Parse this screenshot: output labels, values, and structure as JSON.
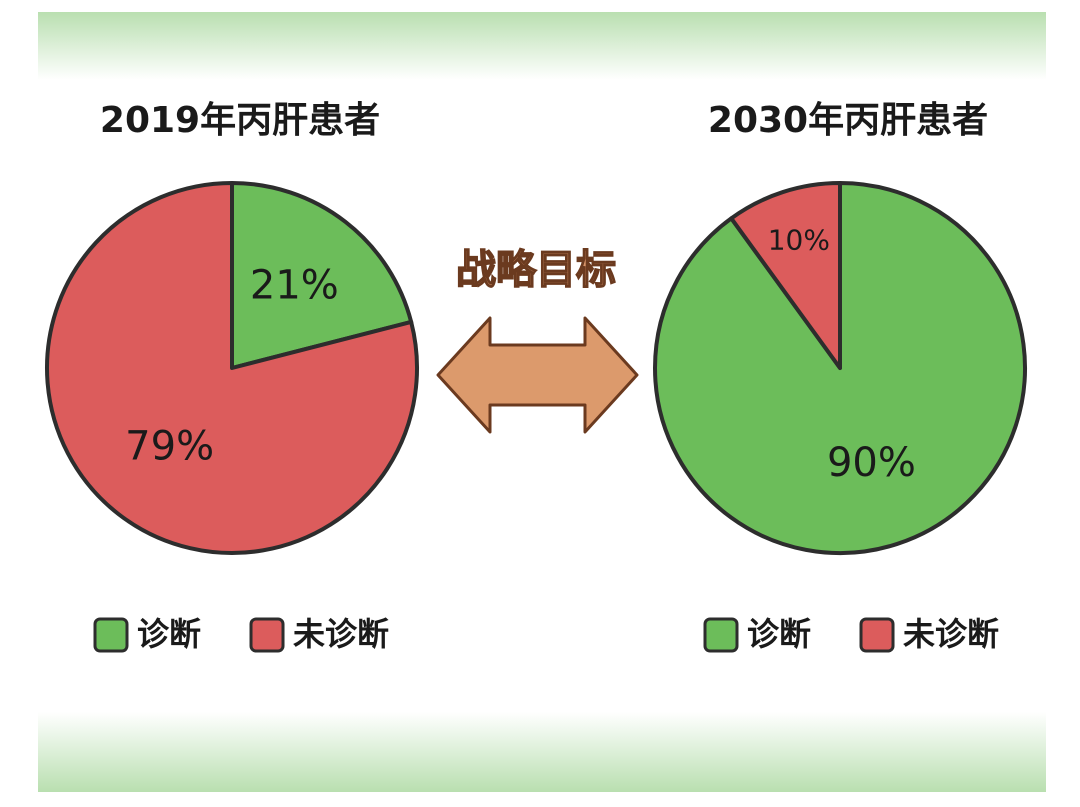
{
  "chart_data": [
    {
      "type": "pie",
      "title": "2019年丙肝患者",
      "categories": [
        "诊断",
        "未诊断"
      ],
      "values": [
        21,
        79
      ],
      "value_labels": [
        "21%",
        "79%"
      ],
      "colors": [
        "#6cbd5a",
        "#dc5c5c"
      ]
    },
    {
      "type": "pie",
      "title": "2030年丙肝患者",
      "categories": [
        "诊断",
        "未诊断"
      ],
      "values": [
        90,
        10
      ],
      "value_labels": [
        "90%",
        "10%"
      ],
      "colors": [
        "#6cbd5a",
        "#dc5c5c"
      ]
    }
  ],
  "annotation": "战略目标"
}
